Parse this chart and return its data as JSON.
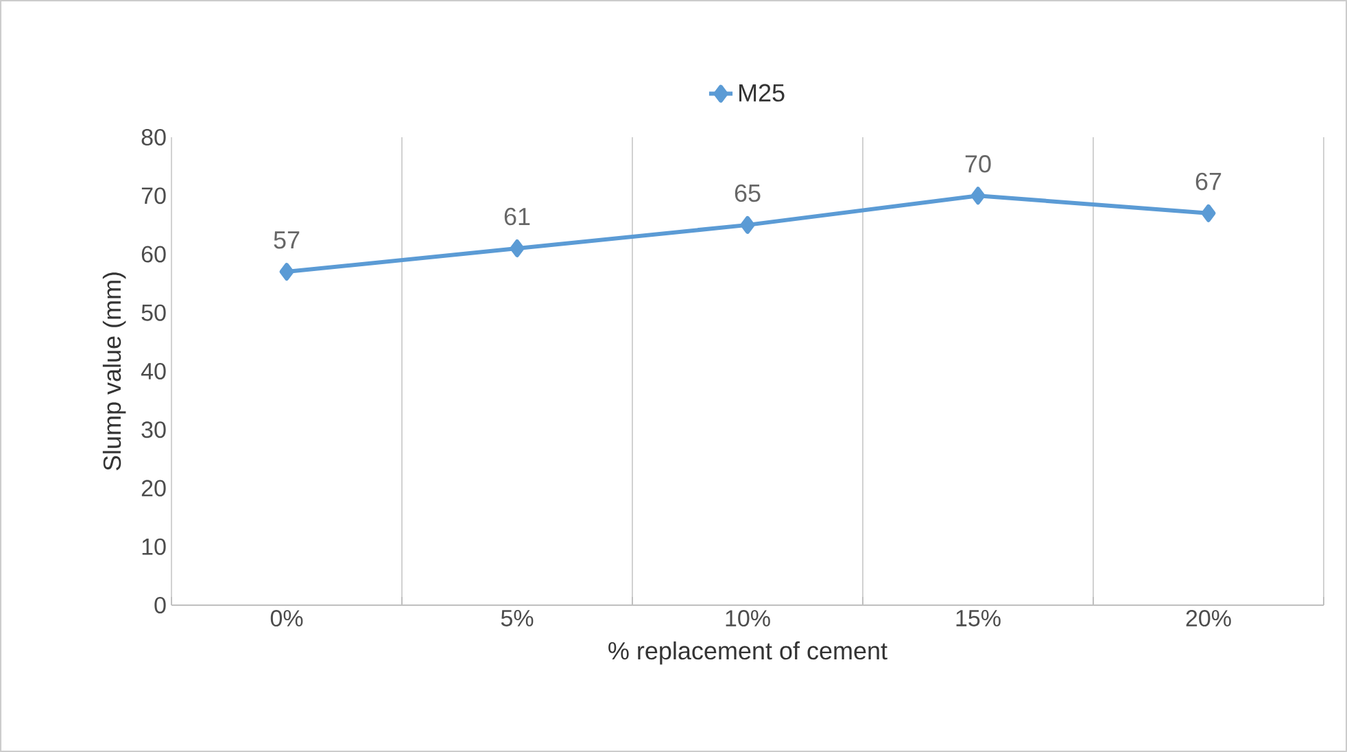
{
  "chart_data": {
    "type": "line",
    "xlabel": "% replacement of cement",
    "ylabel": "Slump value (mm)",
    "categories": [
      "0%",
      "5%",
      "10%",
      "15%",
      "20%"
    ],
    "series": [
      {
        "name": "M25",
        "color": "#5b9bd5",
        "values": [
          57,
          61,
          65,
          70,
          67
        ]
      }
    ],
    "ylim": [
      0,
      80
    ],
    "yticks": [
      0,
      10,
      20,
      30,
      40,
      50,
      60,
      70,
      80
    ],
    "grid": "x",
    "legend": "top",
    "marker": "diamond",
    "line_style": "solid",
    "data_labels": true
  }
}
